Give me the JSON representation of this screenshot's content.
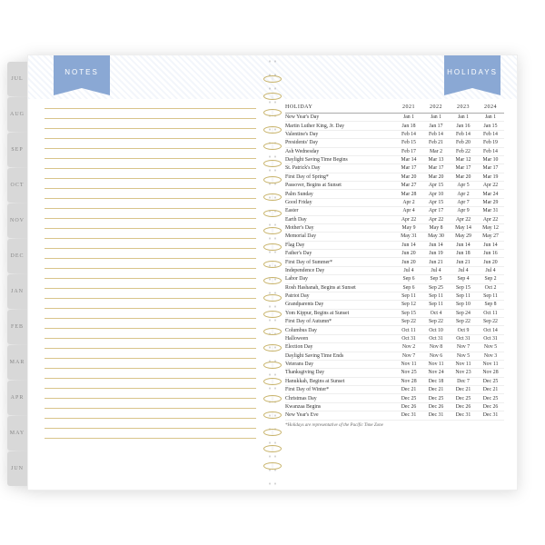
{
  "colors": {
    "ribbon": "#8aa8d4",
    "rule_line": "#d9c48a",
    "spiral": "#c8b36a",
    "tab_bg": "#d8d8d8",
    "stripe_a": "#f3f6fb",
    "stripe_b": "#ffffff"
  },
  "left_page": {
    "ribbon_label": "NOTES",
    "line_count": 34
  },
  "right_page": {
    "ribbon_label": "HOLIDAYS",
    "table_header": "HOLIDAY",
    "years": [
      "2021",
      "2022",
      "2023",
      "2024"
    ],
    "rows": [
      {
        "name": "New Year's Day",
        "d": [
          "Jan 1",
          "Jan 1",
          "Jan 1",
          "Jan 1"
        ]
      },
      {
        "name": "Martin Luther King, Jr. Day",
        "d": [
          "Jan 18",
          "Jan 17",
          "Jan 16",
          "Jan 15"
        ]
      },
      {
        "name": "Valentine's Day",
        "d": [
          "Feb 14",
          "Feb 14",
          "Feb 14",
          "Feb 14"
        ]
      },
      {
        "name": "Presidents' Day",
        "d": [
          "Feb 15",
          "Feb 21",
          "Feb 20",
          "Feb 19"
        ]
      },
      {
        "name": "Ash Wednesday",
        "d": [
          "Feb 17",
          "Mar 2",
          "Feb 22",
          "Feb 14"
        ]
      },
      {
        "name": "Daylight Saving Time Begins",
        "d": [
          "Mar 14",
          "Mar 13",
          "Mar 12",
          "Mar 10"
        ]
      },
      {
        "name": "St. Patrick's Day",
        "d": [
          "Mar 17",
          "Mar 17",
          "Mar 17",
          "Mar 17"
        ]
      },
      {
        "name": "First Day of Spring*",
        "d": [
          "Mar 20",
          "Mar 20",
          "Mar 20",
          "Mar 19"
        ]
      },
      {
        "name": "Passover, Begins at Sunset",
        "d": [
          "Mar 27",
          "Apr 15",
          "Apr 5",
          "Apr 22"
        ]
      },
      {
        "name": "Palm Sunday",
        "d": [
          "Mar 28",
          "Apr 10",
          "Apr 2",
          "Mar 24"
        ]
      },
      {
        "name": "Good Friday",
        "d": [
          "Apr 2",
          "Apr 15",
          "Apr 7",
          "Mar 29"
        ]
      },
      {
        "name": "Easter",
        "d": [
          "Apr 4",
          "Apr 17",
          "Apr 9",
          "Mar 31"
        ]
      },
      {
        "name": "Earth Day",
        "d": [
          "Apr 22",
          "Apr 22",
          "Apr 22",
          "Apr 22"
        ]
      },
      {
        "name": "Mother's Day",
        "d": [
          "May 9",
          "May 8",
          "May 14",
          "May 12"
        ]
      },
      {
        "name": "Memorial Day",
        "d": [
          "May 31",
          "May 30",
          "May 29",
          "May 27"
        ]
      },
      {
        "name": "Flag Day",
        "d": [
          "Jun 14",
          "Jun 14",
          "Jun 14",
          "Jun 14"
        ]
      },
      {
        "name": "Father's Day",
        "d": [
          "Jun 20",
          "Jun 19",
          "Jun 18",
          "Jun 16"
        ]
      },
      {
        "name": "First Day of Summer*",
        "d": [
          "Jun 20",
          "Jun 21",
          "Jun 21",
          "Jun 20"
        ]
      },
      {
        "name": "Independence Day",
        "d": [
          "Jul 4",
          "Jul 4",
          "Jul 4",
          "Jul 4"
        ]
      },
      {
        "name": "Labor Day",
        "d": [
          "Sep 6",
          "Sep 5",
          "Sep 4",
          "Sep 2"
        ]
      },
      {
        "name": "Rosh Hashanah, Begins at Sunset",
        "d": [
          "Sep 6",
          "Sep 25",
          "Sep 15",
          "Oct 2"
        ]
      },
      {
        "name": "Patriot Day",
        "d": [
          "Sep 11",
          "Sep 11",
          "Sep 11",
          "Sep 11"
        ]
      },
      {
        "name": "Grandparents Day",
        "d": [
          "Sep 12",
          "Sep 11",
          "Sep 10",
          "Sep 8"
        ]
      },
      {
        "name": "Yom Kippur, Begins at Sunset",
        "d": [
          "Sep 15",
          "Oct 4",
          "Sep 24",
          "Oct 11"
        ]
      },
      {
        "name": "First Day of Autumn*",
        "d": [
          "Sep 22",
          "Sep 22",
          "Sep 22",
          "Sep 22"
        ]
      },
      {
        "name": "Columbus Day",
        "d": [
          "Oct 11",
          "Oct 10",
          "Oct 9",
          "Oct 14"
        ]
      },
      {
        "name": "Halloween",
        "d": [
          "Oct 31",
          "Oct 31",
          "Oct 31",
          "Oct 31"
        ]
      },
      {
        "name": "Election Day",
        "d": [
          "Nov 2",
          "Nov 8",
          "Nov 7",
          "Nov 5"
        ]
      },
      {
        "name": "Daylight Saving Time Ends",
        "d": [
          "Nov 7",
          "Nov 6",
          "Nov 5",
          "Nov 3"
        ]
      },
      {
        "name": "Veterans Day",
        "d": [
          "Nov 11",
          "Nov 11",
          "Nov 11",
          "Nov 11"
        ]
      },
      {
        "name": "Thanksgiving Day",
        "d": [
          "Nov 25",
          "Nov 24",
          "Nov 23",
          "Nov 28"
        ]
      },
      {
        "name": "Hanukkah, Begins at Sunset",
        "d": [
          "Nov 28",
          "Dec 18",
          "Dec 7",
          "Dec 25"
        ]
      },
      {
        "name": "First Day of Winter*",
        "d": [
          "Dec 21",
          "Dec 21",
          "Dec 21",
          "Dec 21"
        ]
      },
      {
        "name": "Christmas Day",
        "d": [
          "Dec 25",
          "Dec 25",
          "Dec 25",
          "Dec 25"
        ]
      },
      {
        "name": "Kwanzaa Begins",
        "d": [
          "Dec 26",
          "Dec 26",
          "Dec 26",
          "Dec 26"
        ]
      },
      {
        "name": "New Year's Eve",
        "d": [
          "Dec 31",
          "Dec 31",
          "Dec 31",
          "Dec 31"
        ]
      }
    ],
    "footnote": "*Holidays are representative of the Pacific Time Zone"
  },
  "tabs": [
    "JUL",
    "AUG",
    "SEP",
    "OCT",
    "NOV",
    "DEC",
    "JAN",
    "FEB",
    "MAR",
    "APR",
    "MAY",
    "JUN"
  ],
  "spiral_rings": 24
}
